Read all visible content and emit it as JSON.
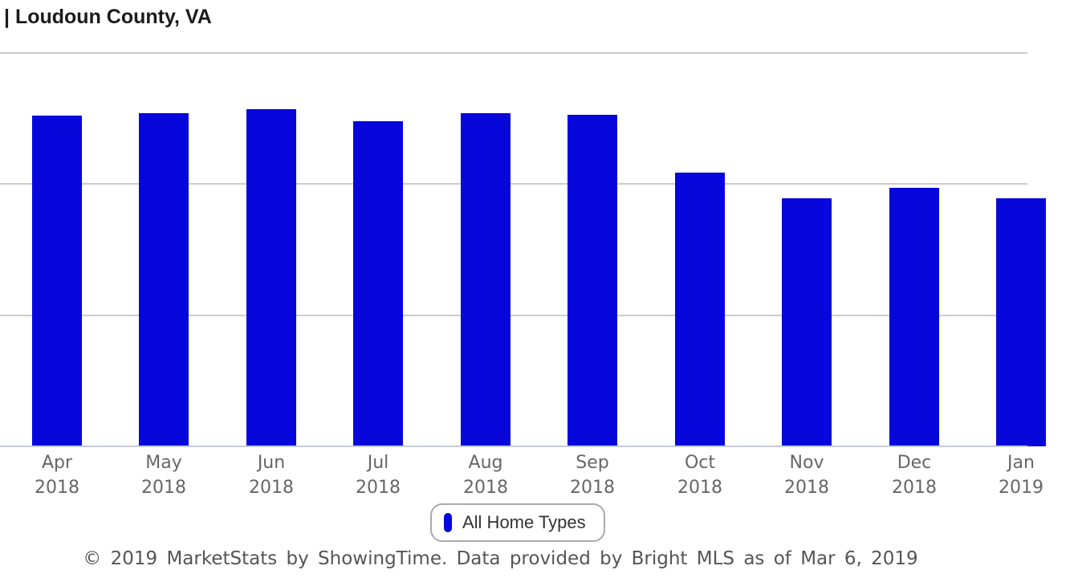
{
  "page": {
    "title": "| Loudoun County, VA"
  },
  "chart_data": {
    "type": "bar",
    "title": "| Loudoun County, VA",
    "categories": [
      "Apr 2018",
      "May 2018",
      "Jun 2018",
      "Jul 2018",
      "Aug 2018",
      "Sep 2018",
      "Oct 2018",
      "Nov 2018",
      "Dec 2018",
      "Jan 2019"
    ],
    "values": [
      2.52,
      2.54,
      2.57,
      2.48,
      2.54,
      2.53,
      2.09,
      1.89,
      1.97,
      1.89
    ],
    "series_name": "All Home Types",
    "xlabel": "",
    "ylabel": "",
    "ylim": [
      0,
      3.05
    ],
    "gridline_values": [
      1,
      2,
      3
    ],
    "grid": true,
    "legend_position": "bottom-center",
    "bar_color": "#0707DB",
    "note": "Y-axis tick labels are cropped off the left edge of the screenshot; values are estimated in gridline units (horizontal gridlines at 1, 2 and 3 units; bars rest on the zero baseline). Leftmost part of title and right edge of Jan 2019 bar/label are also cropped."
  },
  "legend": {
    "label": "All Home Types"
  },
  "footer": {
    "text": "© 2019 MarketStats by ShowingTime. Data provided by Bright MLS as of Mar 6, 2019"
  },
  "colors": {
    "bar": "#0707DB",
    "gridline": "#cccccc",
    "axis_line": "#c3cbd6",
    "title_text": "#1b1b1b",
    "tick_label": "#666666",
    "footer_text": "#555555",
    "legend_border": "#aaaaaa",
    "legend_text": "#333333"
  }
}
